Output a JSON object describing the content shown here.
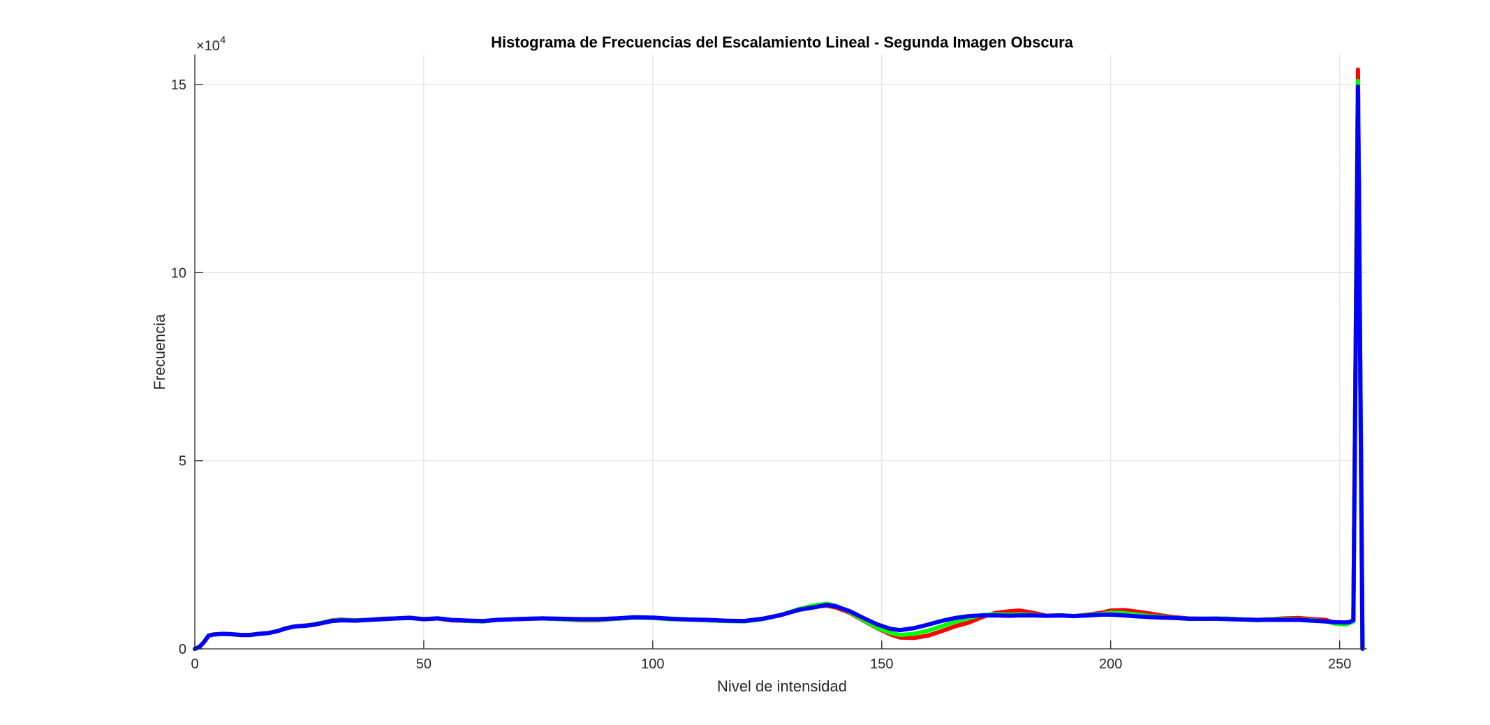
{
  "chart_data": {
    "type": "line",
    "title": "Histograma de Frecuencias del Escalamiento Lineal - Segunda Imagen Obscura",
    "xlabel": "Nivel de intensidad",
    "ylabel": "Frecuencia",
    "y_exponent_label": "×10",
    "y_exponent_power": "4",
    "xlim": [
      0,
      256
    ],
    "ylim": [
      0,
      158000
    ],
    "xticks": [
      0,
      50,
      100,
      150,
      200,
      250
    ],
    "xtick_labels": [
      "0",
      "50",
      "100",
      "150",
      "200",
      "250"
    ],
    "yticks": [
      0,
      50000,
      100000,
      150000
    ],
    "ytick_labels": [
      "0",
      "5",
      "10",
      "15"
    ],
    "grid": true,
    "legend": "none",
    "series": [
      {
        "color": "#ff0000",
        "points": [
          [
            0,
            0
          ],
          [
            1,
            500
          ],
          [
            2,
            1800
          ],
          [
            3,
            3500
          ],
          [
            4,
            3800
          ],
          [
            6,
            4000
          ],
          [
            8,
            3900
          ],
          [
            10,
            3700
          ],
          [
            12,
            3700
          ],
          [
            14,
            4000
          ],
          [
            16,
            4200
          ],
          [
            18,
            4700
          ],
          [
            20,
            5500
          ],
          [
            22,
            6000
          ],
          [
            24,
            6200
          ],
          [
            26,
            6500
          ],
          [
            28,
            7000
          ],
          [
            30,
            7600
          ],
          [
            32,
            7800
          ],
          [
            35,
            7600
          ],
          [
            38,
            7700
          ],
          [
            41,
            8000
          ],
          [
            44,
            8100
          ],
          [
            47,
            8300
          ],
          [
            50,
            7900
          ],
          [
            53,
            8100
          ],
          [
            56,
            7600
          ],
          [
            60,
            7400
          ],
          [
            63,
            7300
          ],
          [
            66,
            7700
          ],
          [
            70,
            7900
          ],
          [
            73,
            8000
          ],
          [
            76,
            8100
          ],
          [
            80,
            7900
          ],
          [
            84,
            7600
          ],
          [
            88,
            7600
          ],
          [
            92,
            8000
          ],
          [
            96,
            8300
          ],
          [
            100,
            8200
          ],
          [
            104,
            7900
          ],
          [
            108,
            7800
          ],
          [
            112,
            7600
          ],
          [
            116,
            7400
          ],
          [
            120,
            7400
          ],
          [
            124,
            8000
          ],
          [
            128,
            9000
          ],
          [
            132,
            10500
          ],
          [
            135,
            11200
          ],
          [
            138,
            11500
          ],
          [
            140,
            11000
          ],
          [
            143,
            9600
          ],
          [
            146,
            7500
          ],
          [
            149,
            5500
          ],
          [
            152,
            3800
          ],
          [
            154,
            3000
          ],
          [
            157,
            2900
          ],
          [
            160,
            3500
          ],
          [
            163,
            4700
          ],
          [
            166,
            6000
          ],
          [
            169,
            7000
          ],
          [
            172,
            8500
          ],
          [
            175,
            9600
          ],
          [
            178,
            10000
          ],
          [
            180,
            10200
          ],
          [
            183,
            9600
          ],
          [
            186,
            8800
          ],
          [
            189,
            8900
          ],
          [
            192,
            8700
          ],
          [
            195,
            9100
          ],
          [
            198,
            9600
          ],
          [
            200,
            10200
          ],
          [
            203,
            10300
          ],
          [
            205,
            10000
          ],
          [
            208,
            9500
          ],
          [
            211,
            8900
          ],
          [
            214,
            8400
          ],
          [
            217,
            8100
          ],
          [
            220,
            8000
          ],
          [
            223,
            8100
          ],
          [
            226,
            8000
          ],
          [
            229,
            7800
          ],
          [
            232,
            7700
          ],
          [
            235,
            7900
          ],
          [
            238,
            8100
          ],
          [
            241,
            8200
          ],
          [
            244,
            7900
          ],
          [
            247,
            7700
          ],
          [
            249,
            6800
          ],
          [
            251,
            6600
          ],
          [
            252,
            6900
          ],
          [
            253,
            7500
          ],
          [
            254,
            154000
          ],
          [
            255,
            0
          ]
        ]
      },
      {
        "color": "#00ff00",
        "points": [
          [
            0,
            0
          ],
          [
            1,
            500
          ],
          [
            2,
            1800
          ],
          [
            3,
            3500
          ],
          [
            4,
            3800
          ],
          [
            6,
            4000
          ],
          [
            8,
            3900
          ],
          [
            10,
            3700
          ],
          [
            12,
            3700
          ],
          [
            14,
            4000
          ],
          [
            16,
            4200
          ],
          [
            18,
            4700
          ],
          [
            20,
            5500
          ],
          [
            22,
            6000
          ],
          [
            24,
            6100
          ],
          [
            26,
            6500
          ],
          [
            28,
            7000
          ],
          [
            30,
            7500
          ],
          [
            32,
            7700
          ],
          [
            35,
            7600
          ],
          [
            38,
            7700
          ],
          [
            41,
            7900
          ],
          [
            44,
            8100
          ],
          [
            47,
            8200
          ],
          [
            50,
            7900
          ],
          [
            53,
            8100
          ],
          [
            56,
            7700
          ],
          [
            60,
            7400
          ],
          [
            63,
            7300
          ],
          [
            66,
            7700
          ],
          [
            70,
            7900
          ],
          [
            73,
            8000
          ],
          [
            76,
            8100
          ],
          [
            80,
            7900
          ],
          [
            84,
            7700
          ],
          [
            88,
            7700
          ],
          [
            92,
            8000
          ],
          [
            96,
            8300
          ],
          [
            100,
            8200
          ],
          [
            104,
            7900
          ],
          [
            108,
            7800
          ],
          [
            112,
            7600
          ],
          [
            116,
            7400
          ],
          [
            120,
            7300
          ],
          [
            124,
            7900
          ],
          [
            128,
            9000
          ],
          [
            132,
            10600
          ],
          [
            135,
            11500
          ],
          [
            138,
            12000
          ],
          [
            140,
            11400
          ],
          [
            143,
            9800
          ],
          [
            146,
            7600
          ],
          [
            149,
            5600
          ],
          [
            152,
            4200
          ],
          [
            154,
            3700
          ],
          [
            157,
            4000
          ],
          [
            160,
            4800
          ],
          [
            163,
            6000
          ],
          [
            166,
            7200
          ],
          [
            169,
            8200
          ],
          [
            172,
            9000
          ],
          [
            175,
            9200
          ],
          [
            178,
            9100
          ],
          [
            180,
            9200
          ],
          [
            183,
            9000
          ],
          [
            186,
            8800
          ],
          [
            189,
            8900
          ],
          [
            192,
            8700
          ],
          [
            195,
            9000
          ],
          [
            198,
            9300
          ],
          [
            200,
            9600
          ],
          [
            203,
            9500
          ],
          [
            205,
            9200
          ],
          [
            208,
            8800
          ],
          [
            211,
            8500
          ],
          [
            214,
            8200
          ],
          [
            217,
            8000
          ],
          [
            220,
            8000
          ],
          [
            223,
            8100
          ],
          [
            226,
            8000
          ],
          [
            229,
            7800
          ],
          [
            232,
            7600
          ],
          [
            235,
            7800
          ],
          [
            238,
            7900
          ],
          [
            241,
            7800
          ],
          [
            244,
            7600
          ],
          [
            247,
            7300
          ],
          [
            249,
            6700
          ],
          [
            251,
            6500
          ],
          [
            252,
            6800
          ],
          [
            253,
            7300
          ],
          [
            254,
            151000
          ],
          [
            255,
            0
          ]
        ]
      },
      {
        "color": "#0000ff",
        "points": [
          [
            0,
            0
          ],
          [
            1,
            500
          ],
          [
            2,
            1800
          ],
          [
            3,
            3500
          ],
          [
            4,
            3800
          ],
          [
            6,
            4000
          ],
          [
            8,
            3900
          ],
          [
            10,
            3700
          ],
          [
            12,
            3700
          ],
          [
            14,
            4000
          ],
          [
            16,
            4200
          ],
          [
            18,
            4700
          ],
          [
            20,
            5500
          ],
          [
            22,
            6000
          ],
          [
            24,
            6100
          ],
          [
            26,
            6400
          ],
          [
            28,
            6900
          ],
          [
            30,
            7400
          ],
          [
            32,
            7600
          ],
          [
            35,
            7500
          ],
          [
            38,
            7700
          ],
          [
            41,
            7900
          ],
          [
            44,
            8100
          ],
          [
            47,
            8200
          ],
          [
            50,
            7900
          ],
          [
            53,
            8100
          ],
          [
            56,
            7700
          ],
          [
            60,
            7500
          ],
          [
            63,
            7400
          ],
          [
            66,
            7700
          ],
          [
            70,
            7900
          ],
          [
            73,
            8000
          ],
          [
            76,
            8100
          ],
          [
            80,
            8000
          ],
          [
            84,
            7900
          ],
          [
            88,
            7900
          ],
          [
            92,
            8100
          ],
          [
            96,
            8400
          ],
          [
            100,
            8300
          ],
          [
            104,
            8000
          ],
          [
            108,
            7800
          ],
          [
            112,
            7700
          ],
          [
            116,
            7500
          ],
          [
            120,
            7400
          ],
          [
            124,
            8000
          ],
          [
            128,
            9000
          ],
          [
            132,
            10400
          ],
          [
            135,
            11000
          ],
          [
            138,
            11700
          ],
          [
            140,
            11300
          ],
          [
            143,
            10000
          ],
          [
            146,
            8200
          ],
          [
            149,
            6500
          ],
          [
            152,
            5300
          ],
          [
            154,
            5000
          ],
          [
            157,
            5500
          ],
          [
            160,
            6400
          ],
          [
            163,
            7400
          ],
          [
            166,
            8200
          ],
          [
            169,
            8700
          ],
          [
            172,
            8900
          ],
          [
            175,
            8900
          ],
          [
            178,
            8800
          ],
          [
            180,
            8900
          ],
          [
            183,
            8900
          ],
          [
            186,
            8800
          ],
          [
            189,
            8900
          ],
          [
            192,
            8700
          ],
          [
            195,
            8900
          ],
          [
            198,
            9100
          ],
          [
            200,
            9100
          ],
          [
            203,
            8900
          ],
          [
            205,
            8700
          ],
          [
            208,
            8500
          ],
          [
            211,
            8300
          ],
          [
            214,
            8200
          ],
          [
            217,
            8000
          ],
          [
            220,
            8000
          ],
          [
            223,
            8000
          ],
          [
            226,
            7900
          ],
          [
            229,
            7800
          ],
          [
            232,
            7700
          ],
          [
            235,
            7700
          ],
          [
            238,
            7700
          ],
          [
            241,
            7700
          ],
          [
            244,
            7500
          ],
          [
            247,
            7300
          ],
          [
            249,
            7100
          ],
          [
            251,
            7000
          ],
          [
            252,
            7100
          ],
          [
            253,
            7600
          ],
          [
            254,
            149500
          ],
          [
            255,
            0
          ]
        ]
      }
    ]
  }
}
